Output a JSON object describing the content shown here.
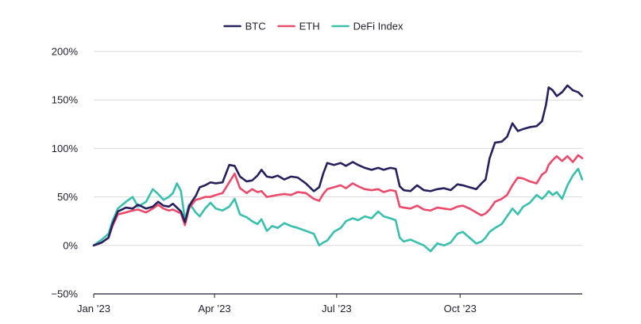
{
  "chart_data": {
    "type": "line",
    "title": "",
    "xlabel": "",
    "ylabel": "",
    "ylim": [
      -50,
      200
    ],
    "y_ticks": [
      {
        "value": -50,
        "label": "−50%"
      },
      {
        "value": 0,
        "label": "0%"
      },
      {
        "value": 50,
        "label": "50%"
      },
      {
        "value": 100,
        "label": "100%"
      },
      {
        "value": 150,
        "label": "150%"
      },
      {
        "value": 200,
        "label": "200%"
      }
    ],
    "x_range": [
      "2023-01-01",
      "2023-12-31"
    ],
    "x_ticks": [
      {
        "date": "2023-01-01",
        "label": "Jan ’23"
      },
      {
        "date": "2023-04-01",
        "label": "Apr ’23"
      },
      {
        "date": "2023-07-01",
        "label": "Jul ’23"
      },
      {
        "date": "2023-10-01",
        "label": "Oct ’23"
      }
    ],
    "grid": true,
    "legend_position": "top-center",
    "series": [
      {
        "name": "BTC",
        "color": "#26215c",
        "points": [
          [
            "2023-01-01",
            0
          ],
          [
            "2023-01-07",
            3
          ],
          [
            "2023-01-12",
            8
          ],
          [
            "2023-01-15",
            22
          ],
          [
            "2023-01-19",
            35
          ],
          [
            "2023-01-25",
            39
          ],
          [
            "2023-01-30",
            38
          ],
          [
            "2023-02-03",
            42
          ],
          [
            "2023-02-09",
            38
          ],
          [
            "2023-02-14",
            40
          ],
          [
            "2023-02-18",
            45
          ],
          [
            "2023-02-22",
            41
          ],
          [
            "2023-02-26",
            40
          ],
          [
            "2023-03-01",
            43
          ],
          [
            "2023-03-04",
            39
          ],
          [
            "2023-03-07",
            35
          ],
          [
            "2023-03-10",
            24
          ],
          [
            "2023-03-13",
            40
          ],
          [
            "2023-03-15",
            45
          ],
          [
            "2023-03-18",
            51
          ],
          [
            "2023-03-21",
            60
          ],
          [
            "2023-03-25",
            62
          ],
          [
            "2023-03-29",
            65
          ],
          [
            "2023-04-02",
            64
          ],
          [
            "2023-04-07",
            65
          ],
          [
            "2023-04-12",
            83
          ],
          [
            "2023-04-16",
            82
          ],
          [
            "2023-04-20",
            71
          ],
          [
            "2023-04-25",
            66
          ],
          [
            "2023-04-29",
            67
          ],
          [
            "2023-05-03",
            72
          ],
          [
            "2023-05-06",
            78
          ],
          [
            "2023-05-10",
            71
          ],
          [
            "2023-05-14",
            70
          ],
          [
            "2023-05-18",
            72
          ],
          [
            "2023-05-23",
            68
          ],
          [
            "2023-05-28",
            71
          ],
          [
            "2023-06-02",
            70
          ],
          [
            "2023-06-08",
            64
          ],
          [
            "2023-06-14",
            56
          ],
          [
            "2023-06-18",
            60
          ],
          [
            "2023-06-21",
            74
          ],
          [
            "2023-06-24",
            85
          ],
          [
            "2023-06-29",
            83
          ],
          [
            "2023-07-04",
            85
          ],
          [
            "2023-07-08",
            82
          ],
          [
            "2023-07-13",
            86
          ],
          [
            "2023-07-17",
            83
          ],
          [
            "2023-07-22",
            80
          ],
          [
            "2023-07-27",
            78
          ],
          [
            "2023-08-01",
            80
          ],
          [
            "2023-08-05",
            78
          ],
          [
            "2023-08-10",
            80
          ],
          [
            "2023-08-14",
            79
          ],
          [
            "2023-08-17",
            61
          ],
          [
            "2023-08-20",
            57
          ],
          [
            "2023-08-25",
            56
          ],
          [
            "2023-08-30",
            62
          ],
          [
            "2023-09-04",
            57
          ],
          [
            "2023-09-09",
            56
          ],
          [
            "2023-09-14",
            58
          ],
          [
            "2023-09-19",
            59
          ],
          [
            "2023-09-24",
            57
          ],
          [
            "2023-09-29",
            63
          ],
          [
            "2023-10-03",
            62
          ],
          [
            "2023-10-08",
            60
          ],
          [
            "2023-10-13",
            58
          ],
          [
            "2023-10-17",
            64
          ],
          [
            "2023-10-20",
            68
          ],
          [
            "2023-10-23",
            90
          ],
          [
            "2023-10-27",
            106
          ],
          [
            "2023-11-01",
            107
          ],
          [
            "2023-11-05",
            112
          ],
          [
            "2023-11-09",
            126
          ],
          [
            "2023-11-13",
            118
          ],
          [
            "2023-11-17",
            120
          ],
          [
            "2023-11-22",
            122
          ],
          [
            "2023-11-27",
            123
          ],
          [
            "2023-12-01",
            128
          ],
          [
            "2023-12-04",
            145
          ],
          [
            "2023-12-06",
            163
          ],
          [
            "2023-12-09",
            160
          ],
          [
            "2023-12-12",
            154
          ],
          [
            "2023-12-16",
            158
          ],
          [
            "2023-12-20",
            165
          ],
          [
            "2023-12-24",
            160
          ],
          [
            "2023-12-28",
            158
          ],
          [
            "2023-12-31",
            154
          ]
        ]
      },
      {
        "name": "ETH",
        "color": "#ec4a6b",
        "points": [
          [
            "2023-01-01",
            0
          ],
          [
            "2023-01-07",
            3
          ],
          [
            "2023-01-12",
            8
          ],
          [
            "2023-01-15",
            20
          ],
          [
            "2023-01-19",
            32
          ],
          [
            "2023-01-25",
            34
          ],
          [
            "2023-01-30",
            36
          ],
          [
            "2023-02-03",
            37
          ],
          [
            "2023-02-09",
            34
          ],
          [
            "2023-02-14",
            38
          ],
          [
            "2023-02-18",
            42
          ],
          [
            "2023-02-22",
            38
          ],
          [
            "2023-02-26",
            36
          ],
          [
            "2023-03-01",
            37
          ],
          [
            "2023-03-04",
            35
          ],
          [
            "2023-03-07",
            33
          ],
          [
            "2023-03-10",
            21
          ],
          [
            "2023-03-13",
            38
          ],
          [
            "2023-03-15",
            42
          ],
          [
            "2023-03-18",
            47
          ],
          [
            "2023-03-21",
            48
          ],
          [
            "2023-03-25",
            50
          ],
          [
            "2023-03-29",
            50
          ],
          [
            "2023-04-02",
            52
          ],
          [
            "2023-04-07",
            54
          ],
          [
            "2023-04-12",
            65
          ],
          [
            "2023-04-16",
            74
          ],
          [
            "2023-04-20",
            59
          ],
          [
            "2023-04-25",
            54
          ],
          [
            "2023-04-29",
            58
          ],
          [
            "2023-05-03",
            55
          ],
          [
            "2023-05-06",
            56
          ],
          [
            "2023-05-10",
            50
          ],
          [
            "2023-05-14",
            51
          ],
          [
            "2023-05-18",
            52
          ],
          [
            "2023-05-23",
            53
          ],
          [
            "2023-05-28",
            52
          ],
          [
            "2023-06-02",
            55
          ],
          [
            "2023-06-08",
            54
          ],
          [
            "2023-06-14",
            48
          ],
          [
            "2023-06-18",
            46
          ],
          [
            "2023-06-21",
            53
          ],
          [
            "2023-06-24",
            58
          ],
          [
            "2023-06-29",
            60
          ],
          [
            "2023-07-04",
            62
          ],
          [
            "2023-07-08",
            59
          ],
          [
            "2023-07-13",
            64
          ],
          [
            "2023-07-17",
            61
          ],
          [
            "2023-07-22",
            58
          ],
          [
            "2023-07-27",
            57
          ],
          [
            "2023-08-01",
            58
          ],
          [
            "2023-08-05",
            55
          ],
          [
            "2023-08-10",
            57
          ],
          [
            "2023-08-14",
            56
          ],
          [
            "2023-08-17",
            40
          ],
          [
            "2023-08-20",
            39
          ],
          [
            "2023-08-25",
            38
          ],
          [
            "2023-08-30",
            41
          ],
          [
            "2023-09-04",
            37
          ],
          [
            "2023-09-09",
            36
          ],
          [
            "2023-09-14",
            39
          ],
          [
            "2023-09-19",
            38
          ],
          [
            "2023-09-24",
            37
          ],
          [
            "2023-09-29",
            40
          ],
          [
            "2023-10-03",
            41
          ],
          [
            "2023-10-08",
            38
          ],
          [
            "2023-10-13",
            34
          ],
          [
            "2023-10-17",
            31
          ],
          [
            "2023-10-20",
            33
          ],
          [
            "2023-10-23",
            37
          ],
          [
            "2023-10-27",
            45
          ],
          [
            "2023-11-01",
            48
          ],
          [
            "2023-11-05",
            52
          ],
          [
            "2023-11-09",
            62
          ],
          [
            "2023-11-13",
            70
          ],
          [
            "2023-11-17",
            69
          ],
          [
            "2023-11-22",
            66
          ],
          [
            "2023-11-27",
            64
          ],
          [
            "2023-12-01",
            73
          ],
          [
            "2023-12-04",
            76
          ],
          [
            "2023-12-06",
            83
          ],
          [
            "2023-12-09",
            88
          ],
          [
            "2023-12-12",
            92
          ],
          [
            "2023-12-16",
            87
          ],
          [
            "2023-12-20",
            92
          ],
          [
            "2023-12-24",
            86
          ],
          [
            "2023-12-28",
            93
          ],
          [
            "2023-12-31",
            90
          ]
        ]
      },
      {
        "name": "DeFi Index",
        "color": "#3bbfad",
        "points": [
          [
            "2023-01-01",
            0
          ],
          [
            "2023-01-07",
            6
          ],
          [
            "2023-01-12",
            12
          ],
          [
            "2023-01-15",
            25
          ],
          [
            "2023-01-19",
            38
          ],
          [
            "2023-01-25",
            45
          ],
          [
            "2023-01-30",
            50
          ],
          [
            "2023-02-03",
            40
          ],
          [
            "2023-02-09",
            45
          ],
          [
            "2023-02-14",
            58
          ],
          [
            "2023-02-18",
            53
          ],
          [
            "2023-02-22",
            47
          ],
          [
            "2023-02-26",
            50
          ],
          [
            "2023-03-01",
            54
          ],
          [
            "2023-03-04",
            64
          ],
          [
            "2023-03-07",
            56
          ],
          [
            "2023-03-10",
            26
          ],
          [
            "2023-03-13",
            42
          ],
          [
            "2023-03-15",
            40
          ],
          [
            "2023-03-18",
            34
          ],
          [
            "2023-03-21",
            30
          ],
          [
            "2023-03-25",
            38
          ],
          [
            "2023-03-29",
            44
          ],
          [
            "2023-04-02",
            38
          ],
          [
            "2023-04-07",
            36
          ],
          [
            "2023-04-12",
            40
          ],
          [
            "2023-04-16",
            48
          ],
          [
            "2023-04-20",
            32
          ],
          [
            "2023-04-25",
            29
          ],
          [
            "2023-04-29",
            25
          ],
          [
            "2023-05-03",
            22
          ],
          [
            "2023-05-06",
            27
          ],
          [
            "2023-05-10",
            15
          ],
          [
            "2023-05-14",
            20
          ],
          [
            "2023-05-18",
            18
          ],
          [
            "2023-05-23",
            23
          ],
          [
            "2023-05-28",
            20
          ],
          [
            "2023-06-02",
            18
          ],
          [
            "2023-06-08",
            15
          ],
          [
            "2023-06-14",
            12
          ],
          [
            "2023-06-18",
            0
          ],
          [
            "2023-06-21",
            3
          ],
          [
            "2023-06-24",
            5
          ],
          [
            "2023-06-29",
            14
          ],
          [
            "2023-07-04",
            18
          ],
          [
            "2023-07-08",
            25
          ],
          [
            "2023-07-13",
            28
          ],
          [
            "2023-07-17",
            26
          ],
          [
            "2023-07-22",
            30
          ],
          [
            "2023-07-27",
            28
          ],
          [
            "2023-08-01",
            35
          ],
          [
            "2023-08-05",
            30
          ],
          [
            "2023-08-10",
            28
          ],
          [
            "2023-08-14",
            26
          ],
          [
            "2023-08-17",
            8
          ],
          [
            "2023-08-20",
            4
          ],
          [
            "2023-08-25",
            6
          ],
          [
            "2023-08-30",
            3
          ],
          [
            "2023-09-04",
            0
          ],
          [
            "2023-09-09",
            -6
          ],
          [
            "2023-09-14",
            2
          ],
          [
            "2023-09-19",
            0
          ],
          [
            "2023-09-24",
            3
          ],
          [
            "2023-09-29",
            12
          ],
          [
            "2023-10-03",
            14
          ],
          [
            "2023-10-08",
            8
          ],
          [
            "2023-10-13",
            2
          ],
          [
            "2023-10-17",
            4
          ],
          [
            "2023-10-20",
            8
          ],
          [
            "2023-10-23",
            14
          ],
          [
            "2023-10-27",
            18
          ],
          [
            "2023-11-01",
            22
          ],
          [
            "2023-11-05",
            30
          ],
          [
            "2023-11-09",
            38
          ],
          [
            "2023-11-13",
            32
          ],
          [
            "2023-11-17",
            40
          ],
          [
            "2023-11-22",
            44
          ],
          [
            "2023-11-27",
            52
          ],
          [
            "2023-12-01",
            48
          ],
          [
            "2023-12-04",
            52
          ],
          [
            "2023-12-06",
            56
          ],
          [
            "2023-12-09",
            52
          ],
          [
            "2023-12-12",
            55
          ],
          [
            "2023-12-16",
            48
          ],
          [
            "2023-12-20",
            62
          ],
          [
            "2023-12-24",
            72
          ],
          [
            "2023-12-28",
            79
          ],
          [
            "2023-12-31",
            68
          ]
        ]
      }
    ]
  }
}
